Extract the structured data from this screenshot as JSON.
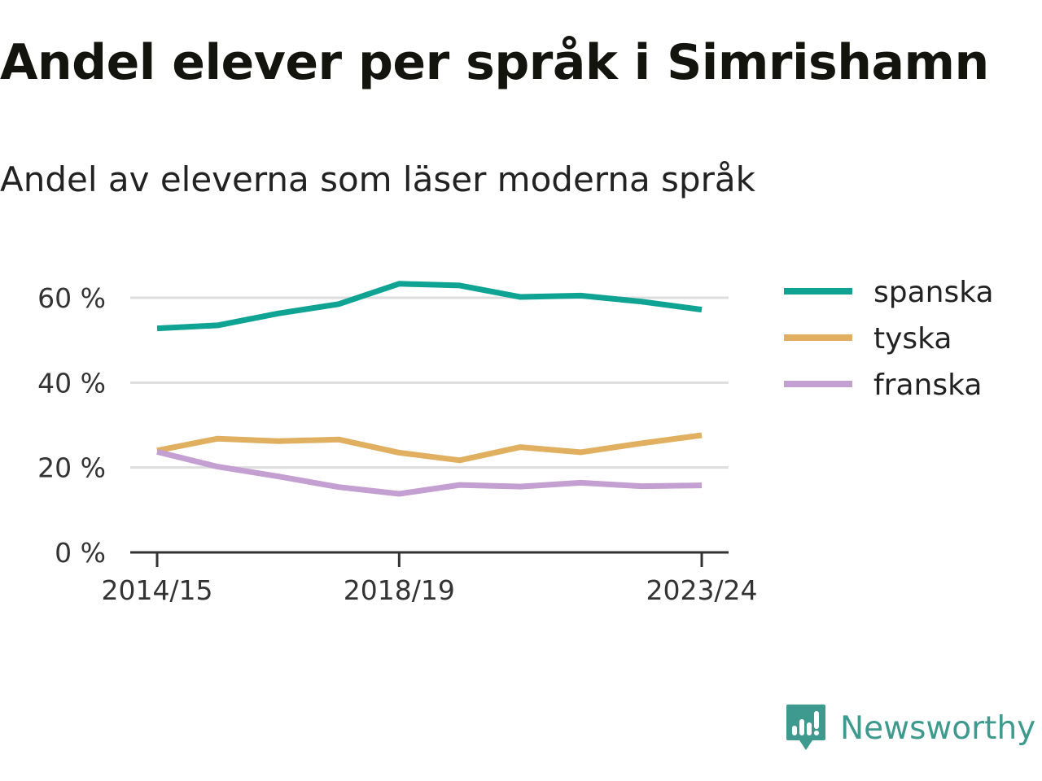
{
  "title": "Andel elever per språk i Simrishamn",
  "subtitle": "Andel av eleverna som läser moderna språk",
  "brand": {
    "name": "Newsworthy",
    "icon": "newsworthy-logo-icon",
    "color": "#3e9a8e"
  },
  "chart_data": {
    "type": "line",
    "x": [
      "2014/15",
      "2015/16",
      "2016/17",
      "2017/18",
      "2018/19",
      "2019/20",
      "2020/21",
      "2021/22",
      "2022/23",
      "2023/24"
    ],
    "x_tick_labels": [
      "2014/15",
      "2018/19",
      "2023/24"
    ],
    "y_tick_labels": [
      "0 %",
      "20 %",
      "40 %",
      "60 %"
    ],
    "y_ticks": [
      0,
      20,
      40,
      60
    ],
    "ylim": [
      0,
      60
    ],
    "grid": true,
    "legend_position": "right",
    "series": [
      {
        "name": "spanska",
        "color": "#0fa394",
        "values": [
          52.8,
          53.5,
          56.3,
          58.5,
          63.3,
          62.9,
          60.2,
          60.5,
          59.1,
          57.2
        ]
      },
      {
        "name": "tyska",
        "color": "#e0b060",
        "values": [
          24.0,
          26.8,
          26.2,
          26.6,
          23.5,
          21.7,
          24.8,
          23.6,
          25.7,
          27.6
        ]
      },
      {
        "name": "franska",
        "color": "#c49fd2",
        "values": [
          23.7,
          20.2,
          17.9,
          15.4,
          13.8,
          15.9,
          15.5,
          16.4,
          15.6,
          15.8
        ]
      }
    ]
  }
}
